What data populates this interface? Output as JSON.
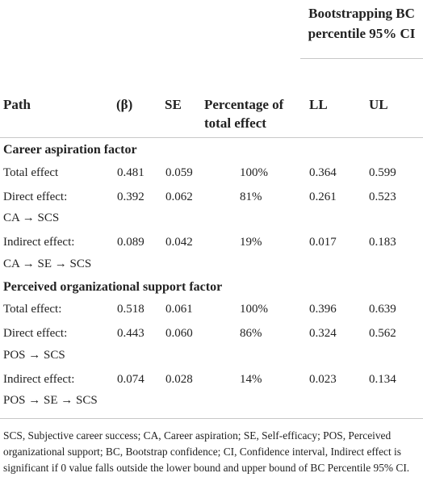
{
  "table": {
    "header": {
      "group": "Bootstrapping BC percentile 95% CI",
      "columns": [
        "Path",
        "(β)",
        "SE",
        "Percentage of total effect",
        "LL",
        "UL"
      ]
    },
    "sections": [
      {
        "title": "Career aspiration factor",
        "rows": [
          {
            "cells": [
              "Total effect",
              "0.481",
              "0.059",
              "100%",
              "0.364",
              "0.599"
            ]
          },
          {
            "cells": [
              "Direct effect:",
              "0.392",
              "0.062",
              "81%",
              "0.261",
              "0.523"
            ],
            "path": "CA → SCS"
          },
          {
            "cells": [
              "Indirect effect:",
              "0.089",
              "0.042",
              "19%",
              "0.017",
              "0.183"
            ],
            "path": "CA → SE → SCS"
          }
        ]
      },
      {
        "title": "Perceived organizational support factor",
        "rows": [
          {
            "cells": [
              "Total effect:",
              "0.518",
              "0.061",
              "100%",
              "0.396",
              "0.639"
            ]
          },
          {
            "cells": [
              "Direct effect:",
              "0.443",
              "0.060",
              "86%",
              "0.324",
              "0.562"
            ],
            "path": "POS → SCS"
          },
          {
            "cells": [
              "Indirect effect:",
              "0.074",
              "0.028",
              "14%",
              "0.023",
              "0.134"
            ],
            "path": "POS → SE → SCS"
          }
        ]
      }
    ],
    "footnote": "SCS, Subjective career success; CA, Career aspiration; SE, Self-efficacy; POS, Perceived organizational support; BC, Bootstrap confidence; CI, Confidence interval, Indirect effect is significant if 0 value falls outside the lower bound and upper bound of BC Percentile 95% CI."
  }
}
